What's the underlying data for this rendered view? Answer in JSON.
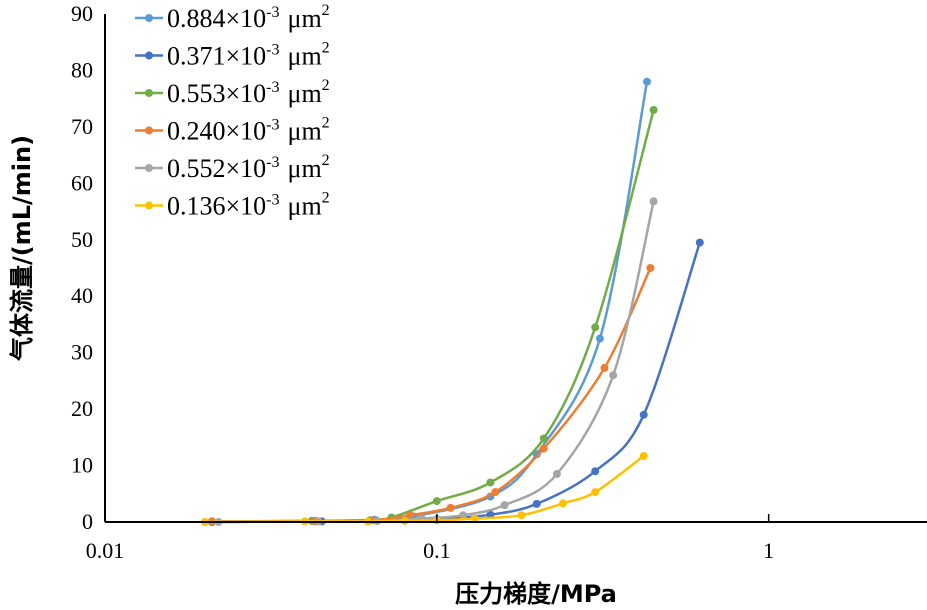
{
  "chart_data": {
    "type": "line",
    "title": "",
    "xlabel": "压力梯度/MPa",
    "ylabel": "气体流量/(mL/min)",
    "xscale": "log",
    "xlim": [
      0.01,
      3.0
    ],
    "ylim": [
      0,
      90
    ],
    "x_ticks": [
      0.01,
      0.1,
      1
    ],
    "x_tick_labels": [
      "0.01",
      "0.1",
      "1"
    ],
    "y_ticks": [
      0,
      10,
      20,
      30,
      40,
      50,
      60,
      70,
      80,
      90
    ],
    "y_tick_labels": [
      "0",
      "10",
      "20",
      "30",
      "40",
      "50",
      "60",
      "70",
      "80",
      "90"
    ],
    "legend_position": "top-left",
    "legend_unit": "μm",
    "legend_exponent_unit": "2",
    "legend_exponent_mult": "-3",
    "grid": false,
    "series": [
      {
        "name": "0.884×10",
        "color": "#5B9BD5",
        "x": [
          0.021,
          0.043,
          0.065,
          0.085,
          0.145,
          0.2,
          0.31,
          0.43
        ],
        "y": [
          0.1,
          0.2,
          0.4,
          1.0,
          4.5,
          12.0,
          32.5,
          78.0
        ]
      },
      {
        "name": "0.371×10",
        "color": "#4472C4",
        "x": [
          0.021,
          0.045,
          0.066,
          0.1,
          0.145,
          0.2,
          0.3,
          0.42,
          0.62
        ],
        "y": [
          0.0,
          0.1,
          0.2,
          0.5,
          1.3,
          3.2,
          9.0,
          19.0,
          49.5
        ]
      },
      {
        "name": "0.553×10",
        "color": "#70AD47",
        "x": [
          0.021,
          0.042,
          0.063,
          0.073,
          0.1,
          0.145,
          0.21,
          0.3,
          0.45
        ],
        "y": [
          0.1,
          0.2,
          0.3,
          0.8,
          3.7,
          7.0,
          14.8,
          34.5,
          73.0
        ]
      },
      {
        "name": "0.240×10",
        "color": "#ED7D31",
        "x": [
          0.021,
          0.043,
          0.064,
          0.083,
          0.11,
          0.15,
          0.21,
          0.32,
          0.44
        ],
        "y": [
          0.1,
          0.1,
          0.3,
          1.2,
          2.5,
          5.3,
          13.0,
          27.3,
          45.0
        ]
      },
      {
        "name": "0.552×10",
        "color": "#A5A5A5",
        "x": [
          0.022,
          0.044,
          0.066,
          0.09,
          0.12,
          0.16,
          0.23,
          0.34,
          0.45
        ],
        "y": [
          0.0,
          0.1,
          0.2,
          0.6,
          1.2,
          3.0,
          8.5,
          26.0,
          56.8
        ]
      },
      {
        "name": "0.136×10",
        "color": "#FFC000",
        "x": [
          0.02,
          0.04,
          0.062,
          0.08,
          0.1,
          0.13,
          0.18,
          0.24,
          0.3,
          0.42
        ],
        "y": [
          0.0,
          0.1,
          0.1,
          0.2,
          0.3,
          0.6,
          1.2,
          3.3,
          5.3,
          11.7
        ]
      }
    ]
  }
}
